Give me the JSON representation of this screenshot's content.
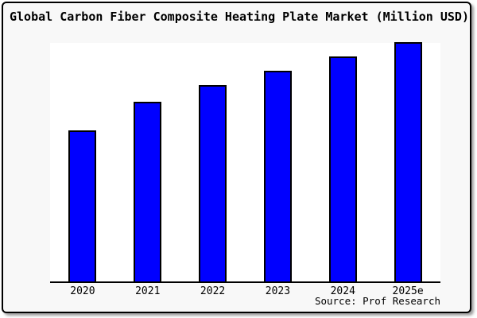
{
  "title": "Global Carbon Fiber Composite Heating Plate Market (Million USD)",
  "source": "Source: Prof Research",
  "colors": {
    "bar_fill": "#0000ff",
    "bar_border": "#000000",
    "card_background": "#f8f8f8",
    "plot_background": "#ffffff",
    "frame_border": "#000000",
    "text": "#000000"
  },
  "chart_data": {
    "type": "bar",
    "title": "Global Carbon Fiber Composite Heating Plate Market (Million USD)",
    "categories": [
      "2020",
      "2021",
      "2022",
      "2023",
      "2024",
      "2025e"
    ],
    "values": [
      63,
      75,
      82,
      88,
      94,
      100
    ],
    "ylim": [
      0,
      100
    ],
    "xlabel": "",
    "ylabel": "",
    "y_axis_ticks_visible": false,
    "grid": false,
    "legend": "none",
    "bar_color": "#0000ff",
    "source": "Source: Prof Research",
    "value_note": "no y-axis labels shown; values estimated relative to tallest bar = 100"
  }
}
